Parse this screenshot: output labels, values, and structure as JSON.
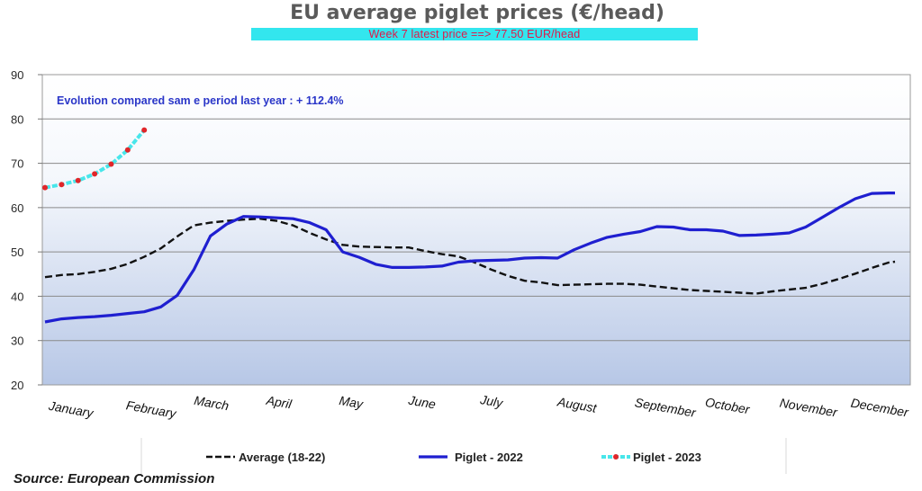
{
  "title": "EU average piglet prices (€/head)",
  "subtitle": "Week 7 latest price ==>  77.50 EUR/head",
  "source": "Source: European Commission",
  "chart_data": {
    "type": "line",
    "ylim": [
      20,
      90
    ],
    "yticks": [
      20,
      30,
      40,
      50,
      60,
      70,
      80,
      90
    ],
    "grid": true,
    "legend_position": "bottom",
    "months": [
      "January",
      "February",
      "March",
      "April",
      "May",
      "June",
      "July",
      "August",
      "September",
      "October",
      "November",
      "December"
    ],
    "annotation": "Evolution compared sam e period last year   : + 112.4%",
    "series": [
      {
        "name": "Average (18-22)",
        "style": "dashed",
        "color": "#111111",
        "x": [
          1,
          2,
          3,
          4,
          5,
          6,
          7,
          8,
          9,
          10,
          11,
          12,
          13,
          14,
          15,
          16,
          17,
          18,
          19,
          20,
          21,
          22,
          23,
          24,
          25,
          26,
          27,
          28,
          29,
          30,
          31,
          32,
          33,
          34,
          35,
          36,
          37,
          38,
          39,
          40,
          41,
          42,
          43,
          44,
          45,
          46,
          47,
          48,
          49,
          50,
          51,
          52
        ],
        "values": [
          44.3,
          44.8,
          45.0,
          45.5,
          46.2,
          47.3,
          48.9,
          50.8,
          53.5,
          56.0,
          56.6,
          57.0,
          57.3,
          57.5,
          57.0,
          56.0,
          54.3,
          52.8,
          51.6,
          51.2,
          51.1,
          51.0,
          51.0,
          50.2,
          49.5,
          49.0,
          47.6,
          46.0,
          44.6,
          43.5,
          43.1,
          42.5,
          42.6,
          42.7,
          42.8,
          42.8,
          42.6,
          42.2,
          41.8,
          41.4,
          41.2,
          41.0,
          40.8,
          40.6,
          41.1,
          41.5,
          41.9,
          42.8,
          43.9,
          45.1,
          46.4,
          47.6
        ],
        "end_x": 52.4,
        "end_value": 47.8
      },
      {
        "name": "Piglet - 2022",
        "style": "solid",
        "color": "#1f1fd0",
        "x": [
          1,
          2,
          3,
          4,
          5,
          6,
          7,
          8,
          9,
          10,
          11,
          12,
          13,
          14,
          15,
          16,
          17,
          18,
          19,
          20,
          21,
          22,
          23,
          24,
          25,
          26,
          27,
          28,
          29,
          30,
          31,
          32,
          33,
          34,
          35,
          36,
          37,
          38,
          39,
          40,
          41,
          42,
          43,
          44,
          45,
          46,
          47,
          48,
          49,
          50,
          51,
          52
        ],
        "values": [
          34.2,
          34.9,
          35.2,
          35.4,
          35.7,
          36.1,
          36.5,
          37.6,
          40.2,
          46.0,
          53.6,
          56.3,
          58.0,
          57.9,
          57.7,
          57.5,
          56.6,
          55.0,
          50.0,
          48.8,
          47.2,
          46.5,
          46.5,
          46.6,
          46.8,
          47.7,
          48.0,
          48.1,
          48.2,
          48.6,
          48.7,
          48.6,
          50.5,
          52.0,
          53.3,
          54.0,
          54.6,
          55.7,
          55.6,
          55.0,
          55.0,
          54.7,
          53.7,
          53.8,
          54.0,
          54.3,
          55.6,
          57.8,
          60.0,
          62.0,
          63.2,
          63.3
        ],
        "end_x": 52.4,
        "end_value": 63.3
      },
      {
        "name": "Piglet - 2023",
        "style": "dotted",
        "color": "#48e6ea",
        "marker_color": "#e0262a",
        "x": [
          1,
          2,
          3,
          4,
          5,
          6,
          7
        ],
        "values": [
          64.5,
          65.2,
          66.1,
          67.6,
          69.8,
          73.0,
          77.5
        ]
      }
    ]
  }
}
